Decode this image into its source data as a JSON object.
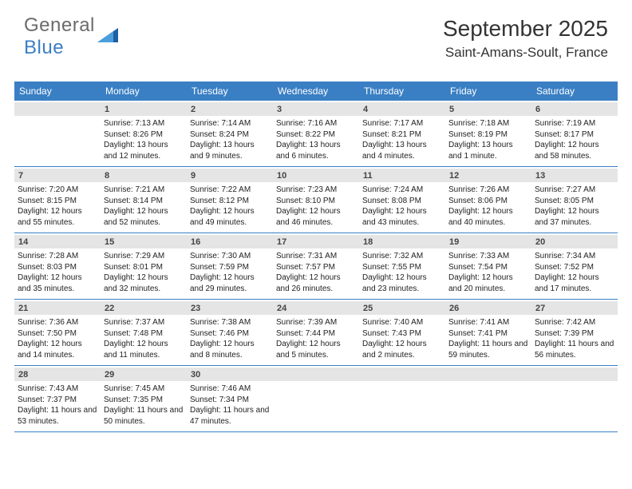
{
  "logo": {
    "text_general": "General",
    "text_blue": "Blue"
  },
  "header": {
    "month_title": "September 2025",
    "location": "Saint-Amans-Soult, France"
  },
  "colors": {
    "header_bg": "#3a7fc4",
    "header_text": "#ffffff",
    "daynum_bg": "#e5e5e5",
    "border": "#3a7fc4",
    "text": "#222222",
    "logo_gray": "#6b6b6b",
    "logo_blue": "#3a7fc4"
  },
  "day_names": [
    "Sunday",
    "Monday",
    "Tuesday",
    "Wednesday",
    "Thursday",
    "Friday",
    "Saturday"
  ],
  "weeks": [
    [
      {
        "day": "",
        "sunrise": "",
        "sunset": "",
        "daylight": ""
      },
      {
        "day": "1",
        "sunrise": "Sunrise: 7:13 AM",
        "sunset": "Sunset: 8:26 PM",
        "daylight": "Daylight: 13 hours and 12 minutes."
      },
      {
        "day": "2",
        "sunrise": "Sunrise: 7:14 AM",
        "sunset": "Sunset: 8:24 PM",
        "daylight": "Daylight: 13 hours and 9 minutes."
      },
      {
        "day": "3",
        "sunrise": "Sunrise: 7:16 AM",
        "sunset": "Sunset: 8:22 PM",
        "daylight": "Daylight: 13 hours and 6 minutes."
      },
      {
        "day": "4",
        "sunrise": "Sunrise: 7:17 AM",
        "sunset": "Sunset: 8:21 PM",
        "daylight": "Daylight: 13 hours and 4 minutes."
      },
      {
        "day": "5",
        "sunrise": "Sunrise: 7:18 AM",
        "sunset": "Sunset: 8:19 PM",
        "daylight": "Daylight: 13 hours and 1 minute."
      },
      {
        "day": "6",
        "sunrise": "Sunrise: 7:19 AM",
        "sunset": "Sunset: 8:17 PM",
        "daylight": "Daylight: 12 hours and 58 minutes."
      }
    ],
    [
      {
        "day": "7",
        "sunrise": "Sunrise: 7:20 AM",
        "sunset": "Sunset: 8:15 PM",
        "daylight": "Daylight: 12 hours and 55 minutes."
      },
      {
        "day": "8",
        "sunrise": "Sunrise: 7:21 AM",
        "sunset": "Sunset: 8:14 PM",
        "daylight": "Daylight: 12 hours and 52 minutes."
      },
      {
        "day": "9",
        "sunrise": "Sunrise: 7:22 AM",
        "sunset": "Sunset: 8:12 PM",
        "daylight": "Daylight: 12 hours and 49 minutes."
      },
      {
        "day": "10",
        "sunrise": "Sunrise: 7:23 AM",
        "sunset": "Sunset: 8:10 PM",
        "daylight": "Daylight: 12 hours and 46 minutes."
      },
      {
        "day": "11",
        "sunrise": "Sunrise: 7:24 AM",
        "sunset": "Sunset: 8:08 PM",
        "daylight": "Daylight: 12 hours and 43 minutes."
      },
      {
        "day": "12",
        "sunrise": "Sunrise: 7:26 AM",
        "sunset": "Sunset: 8:06 PM",
        "daylight": "Daylight: 12 hours and 40 minutes."
      },
      {
        "day": "13",
        "sunrise": "Sunrise: 7:27 AM",
        "sunset": "Sunset: 8:05 PM",
        "daylight": "Daylight: 12 hours and 37 minutes."
      }
    ],
    [
      {
        "day": "14",
        "sunrise": "Sunrise: 7:28 AM",
        "sunset": "Sunset: 8:03 PM",
        "daylight": "Daylight: 12 hours and 35 minutes."
      },
      {
        "day": "15",
        "sunrise": "Sunrise: 7:29 AM",
        "sunset": "Sunset: 8:01 PM",
        "daylight": "Daylight: 12 hours and 32 minutes."
      },
      {
        "day": "16",
        "sunrise": "Sunrise: 7:30 AM",
        "sunset": "Sunset: 7:59 PM",
        "daylight": "Daylight: 12 hours and 29 minutes."
      },
      {
        "day": "17",
        "sunrise": "Sunrise: 7:31 AM",
        "sunset": "Sunset: 7:57 PM",
        "daylight": "Daylight: 12 hours and 26 minutes."
      },
      {
        "day": "18",
        "sunrise": "Sunrise: 7:32 AM",
        "sunset": "Sunset: 7:55 PM",
        "daylight": "Daylight: 12 hours and 23 minutes."
      },
      {
        "day": "19",
        "sunrise": "Sunrise: 7:33 AM",
        "sunset": "Sunset: 7:54 PM",
        "daylight": "Daylight: 12 hours and 20 minutes."
      },
      {
        "day": "20",
        "sunrise": "Sunrise: 7:34 AM",
        "sunset": "Sunset: 7:52 PM",
        "daylight": "Daylight: 12 hours and 17 minutes."
      }
    ],
    [
      {
        "day": "21",
        "sunrise": "Sunrise: 7:36 AM",
        "sunset": "Sunset: 7:50 PM",
        "daylight": "Daylight: 12 hours and 14 minutes."
      },
      {
        "day": "22",
        "sunrise": "Sunrise: 7:37 AM",
        "sunset": "Sunset: 7:48 PM",
        "daylight": "Daylight: 12 hours and 11 minutes."
      },
      {
        "day": "23",
        "sunrise": "Sunrise: 7:38 AM",
        "sunset": "Sunset: 7:46 PM",
        "daylight": "Daylight: 12 hours and 8 minutes."
      },
      {
        "day": "24",
        "sunrise": "Sunrise: 7:39 AM",
        "sunset": "Sunset: 7:44 PM",
        "daylight": "Daylight: 12 hours and 5 minutes."
      },
      {
        "day": "25",
        "sunrise": "Sunrise: 7:40 AM",
        "sunset": "Sunset: 7:43 PM",
        "daylight": "Daylight: 12 hours and 2 minutes."
      },
      {
        "day": "26",
        "sunrise": "Sunrise: 7:41 AM",
        "sunset": "Sunset: 7:41 PM",
        "daylight": "Daylight: 11 hours and 59 minutes."
      },
      {
        "day": "27",
        "sunrise": "Sunrise: 7:42 AM",
        "sunset": "Sunset: 7:39 PM",
        "daylight": "Daylight: 11 hours and 56 minutes."
      }
    ],
    [
      {
        "day": "28",
        "sunrise": "Sunrise: 7:43 AM",
        "sunset": "Sunset: 7:37 PM",
        "daylight": "Daylight: 11 hours and 53 minutes."
      },
      {
        "day": "29",
        "sunrise": "Sunrise: 7:45 AM",
        "sunset": "Sunset: 7:35 PM",
        "daylight": "Daylight: 11 hours and 50 minutes."
      },
      {
        "day": "30",
        "sunrise": "Sunrise: 7:46 AM",
        "sunset": "Sunset: 7:34 PM",
        "daylight": "Daylight: 11 hours and 47 minutes."
      },
      {
        "day": "",
        "sunrise": "",
        "sunset": "",
        "daylight": ""
      },
      {
        "day": "",
        "sunrise": "",
        "sunset": "",
        "daylight": ""
      },
      {
        "day": "",
        "sunrise": "",
        "sunset": "",
        "daylight": ""
      },
      {
        "day": "",
        "sunrise": "",
        "sunset": "",
        "daylight": ""
      }
    ]
  ]
}
